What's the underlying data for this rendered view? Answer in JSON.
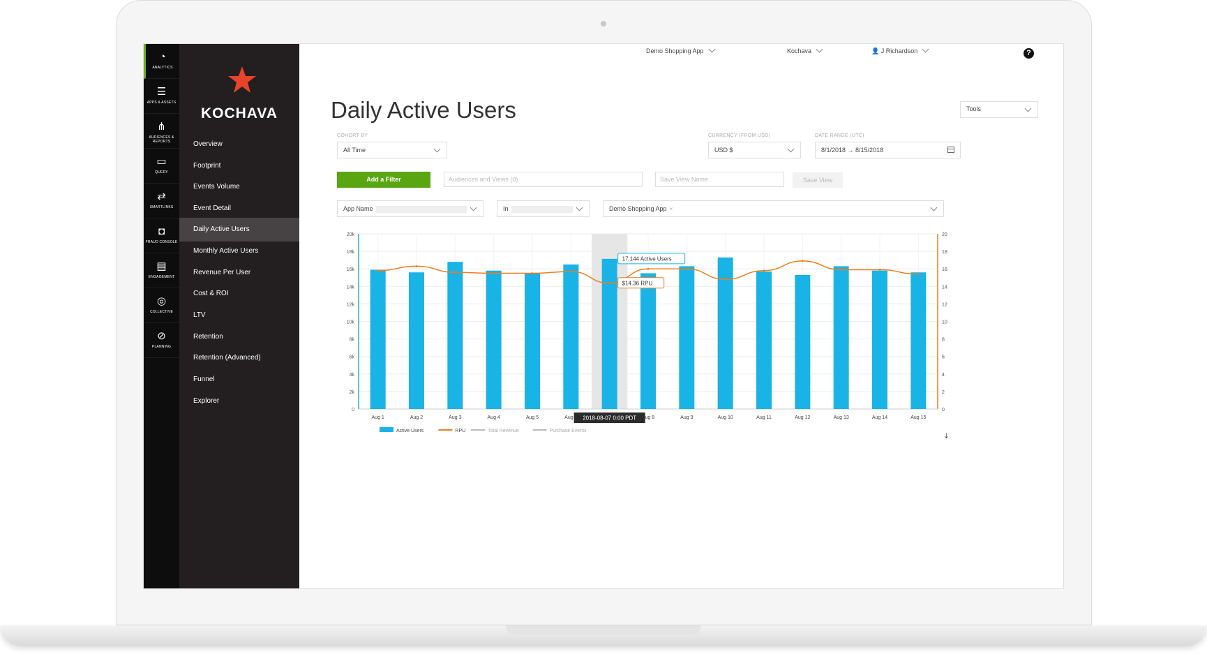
{
  "topnav": {
    "app": "Demo Shopping App",
    "account": "Kochava",
    "user": "J Richardson",
    "help": "?"
  },
  "iconbar": [
    {
      "label": "ANALYTICS",
      "icon": "dashboard-icon",
      "glyph": "◔"
    },
    {
      "label": "APPS & ASSETS",
      "icon": "list-icon",
      "glyph": "☰"
    },
    {
      "label": "AUDIENCES & REPORTS",
      "icon": "hierarchy-icon",
      "glyph": "⋔"
    },
    {
      "label": "QUERY",
      "icon": "query-icon",
      "glyph": "▭"
    },
    {
      "label": "SMARTLINKS",
      "icon": "link-icon",
      "glyph": "⇄"
    },
    {
      "label": "FRAUD CONSOLE",
      "icon": "fraud-icon",
      "glyph": "◘"
    },
    {
      "label": "ENGAGEMENT",
      "icon": "chat-icon",
      "glyph": "▤"
    },
    {
      "label": "COLLECTIVE",
      "icon": "collective-icon",
      "glyph": "◎"
    },
    {
      "label": "PLANNING",
      "icon": "planning-icon",
      "glyph": "⊘"
    }
  ],
  "brand": {
    "name": "KOCHAVA",
    "star_color": "#e8432b"
  },
  "sidebar": {
    "items": [
      "Overview",
      "Footprint",
      "Events Volume",
      "Event Detail",
      "Daily Active Users",
      "Monthly Active Users",
      "Revenue Per User",
      "Cost & ROI",
      "LTV",
      "Retention",
      "Retention (Advanced)",
      "Funnel",
      "Explorer"
    ],
    "active": "Daily Active Users"
  },
  "page": {
    "title": "Daily Active Users",
    "tools": "Tools"
  },
  "controls": {
    "cohort_label": "COHORT BY",
    "cohort_value": "All Time",
    "currency_label": "CURRENCY (FROM USD)",
    "currency_value": "USD $",
    "date_label": "DATE RANGE (UTC)",
    "date_value": "8/1/2018 → 8/15/2018",
    "add_filter": "Add a Filter",
    "audiences": "Audiences and Views (0)",
    "save_view_name": "Save View Name",
    "save_view": "Save View",
    "filter_field": "App Name",
    "filter_op": "In",
    "filter_value": "Demo Shopping App",
    "filter_remove": "×"
  },
  "chart_data": {
    "type": "bar",
    "categories": [
      "Aug 1",
      "Aug 2",
      "Aug 3",
      "Aug 4",
      "Aug 5",
      "Aug 6",
      "Aug 7",
      "Aug 8",
      "Aug 9",
      "Aug 10",
      "Aug 11",
      "Aug 12",
      "Aug 13",
      "Aug 14",
      "Aug 15"
    ],
    "series": [
      {
        "name": "Active Users",
        "type": "bar",
        "axis": "left",
        "color": "#1ab3e6",
        "values": [
          15900,
          15600,
          16800,
          15800,
          15500,
          16500,
          17144,
          15500,
          16300,
          17300,
          15700,
          15300,
          16300,
          15800,
          15600
        ]
      },
      {
        "name": "RPU",
        "type": "line",
        "axis": "right",
        "color": "#f07c1e",
        "values": [
          15.8,
          16.3,
          15.6,
          15.5,
          15.5,
          15.7,
          14.36,
          16.0,
          16.0,
          14.8,
          15.8,
          16.9,
          15.9,
          15.9,
          15.4
        ]
      }
    ],
    "legend": [
      "Active Users",
      "RPU",
      "Total Revenue",
      "Purchase Events"
    ],
    "legend_colors": [
      "#1ab3e6",
      "#f07c1e",
      "#bbbbbb",
      "#bbbbbb"
    ],
    "y_left": {
      "min": 0,
      "max": 20000,
      "ticks": [
        "0",
        "2k",
        "4k",
        "6k",
        "8k",
        "10k",
        "12k",
        "14k",
        "16k",
        "18k",
        "20k"
      ]
    },
    "y_right": {
      "min": 0,
      "max": 20,
      "ticks": [
        "0",
        "2",
        "4",
        "6",
        "8",
        "10",
        "12",
        "14",
        "16",
        "18",
        "20"
      ]
    },
    "highlight_index": 6,
    "tooltip_users": "17,144 Active Users",
    "tooltip_rpu": "$14.36 RPU",
    "tooltip_date": "2018-08-07 0:00 PDT",
    "legend_placement": "bottom-left"
  }
}
